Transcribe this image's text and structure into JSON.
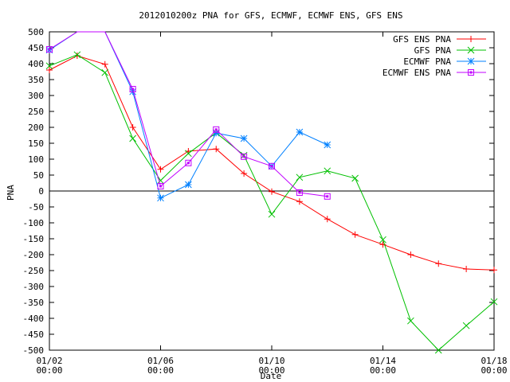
{
  "chart_data": {
    "type": "line",
    "title": "2012010200z PNA for GFS, ECMWF, ECMWF ENS, GFS ENS",
    "xlabel": "Date",
    "ylabel": "PNA",
    "xlim": [
      "01/02",
      "01/18"
    ],
    "ylim": [
      -500,
      500
    ],
    "y_ticks": [
      -500,
      -450,
      -400,
      -350,
      -300,
      -250,
      -200,
      -150,
      -100,
      -50,
      0,
      50,
      100,
      150,
      200,
      250,
      300,
      350,
      400,
      450,
      500
    ],
    "x_ticks": [
      {
        "date": "01/02",
        "line1": "01/02",
        "line2": "00:00"
      },
      {
        "date": "01/06",
        "line1": "01/06",
        "line2": "00:00"
      },
      {
        "date": "01/10",
        "line1": "01/10",
        "line2": "00:00"
      },
      {
        "date": "01/14",
        "line1": "01/14",
        "line2": "00:00"
      },
      {
        "date": "01/18",
        "line1": "01/18",
        "line2": "00:00"
      }
    ],
    "zero_line": true,
    "grid": false,
    "legend_position": "top-right",
    "series": [
      {
        "name": "GFS ENS PNA",
        "color": "#ff0000",
        "marker": "plus",
        "points": [
          {
            "date": "01/02",
            "value": 380
          },
          {
            "date": "01/03",
            "value": 425
          },
          {
            "date": "01/04",
            "value": 398
          },
          {
            "date": "01/05",
            "value": 200
          },
          {
            "date": "01/06",
            "value": 68
          },
          {
            "date": "01/07",
            "value": 125
          },
          {
            "date": "01/08",
            "value": 132
          },
          {
            "date": "01/09",
            "value": 55
          },
          {
            "date": "01/10",
            "value": -2
          },
          {
            "date": "01/11",
            "value": -33
          },
          {
            "date": "01/12",
            "value": -88
          },
          {
            "date": "01/13",
            "value": -137
          },
          {
            "date": "01/14",
            "value": -168
          },
          {
            "date": "01/15",
            "value": -200
          },
          {
            "date": "01/16",
            "value": -228
          },
          {
            "date": "01/17",
            "value": -245
          },
          {
            "date": "01/18",
            "value": -248
          }
        ]
      },
      {
        "name": "GFS PNA",
        "color": "#00c000",
        "marker": "cross",
        "points": [
          {
            "date": "01/02",
            "value": 393
          },
          {
            "date": "01/03",
            "value": 428
          },
          {
            "date": "01/04",
            "value": 372
          },
          {
            "date": "01/05",
            "value": 165
          },
          {
            "date": "01/06",
            "value": 33
          },
          {
            "date": "01/07",
            "value": 118
          },
          {
            "date": "01/08",
            "value": 183
          },
          {
            "date": "01/09",
            "value": 112
          },
          {
            "date": "01/10",
            "value": -73
          },
          {
            "date": "01/11",
            "value": 43
          },
          {
            "date": "01/12",
            "value": 63
          },
          {
            "date": "01/13",
            "value": 40
          },
          {
            "date": "01/14",
            "value": -153
          },
          {
            "date": "01/15",
            "value": -408
          },
          {
            "date": "01/16",
            "value": -500
          },
          {
            "date": "01/17",
            "value": -423
          },
          {
            "date": "01/18",
            "value": -348
          }
        ]
      },
      {
        "name": "ECMWF PNA",
        "color": "#0080ff",
        "marker": "star",
        "points": [
          {
            "date": "01/02",
            "value": 443
          },
          {
            "date": "01/03",
            "value": 505
          },
          {
            "date": "01/04",
            "value": 505
          },
          {
            "date": "01/05",
            "value": 312
          },
          {
            "date": "01/06",
            "value": -22
          },
          {
            "date": "01/07",
            "value": 20
          },
          {
            "date": "01/08",
            "value": 182
          },
          {
            "date": "01/09",
            "value": 165
          },
          {
            "date": "01/10",
            "value": 78
          },
          {
            "date": "01/11",
            "value": 185
          },
          {
            "date": "01/12",
            "value": 145
          }
        ]
      },
      {
        "name": "ECMWF ENS PNA",
        "color": "#c000ff",
        "marker": "square",
        "points": [
          {
            "date": "01/02",
            "value": 445
          },
          {
            "date": "01/03",
            "value": 505
          },
          {
            "date": "01/04",
            "value": 505
          },
          {
            "date": "01/05",
            "value": 320
          },
          {
            "date": "01/06",
            "value": 15
          },
          {
            "date": "01/07",
            "value": 88
          },
          {
            "date": "01/08",
            "value": 193
          },
          {
            "date": "01/09",
            "value": 108
          },
          {
            "date": "01/10",
            "value": 78
          },
          {
            "date": "01/11",
            "value": -5
          },
          {
            "date": "01/12",
            "value": -17
          }
        ]
      }
    ]
  }
}
